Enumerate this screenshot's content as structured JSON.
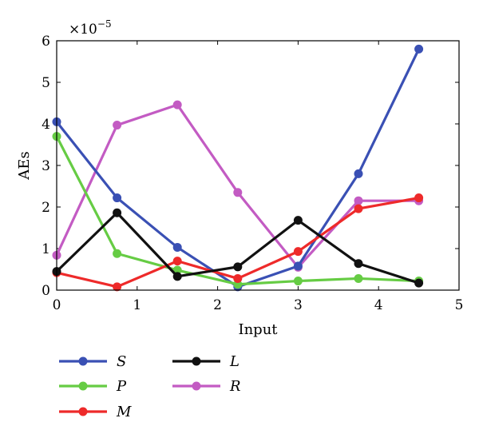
{
  "chart_data": {
    "type": "line",
    "xlabel": "Input",
    "ylabel": "AEs",
    "y_multiplier_base": "×10",
    "y_multiplier_exponent": "−5",
    "xlim": [
      0,
      5
    ],
    "ylim": [
      0,
      6
    ],
    "x_ticks": [
      "0",
      "1",
      "2",
      "3",
      "4",
      "5"
    ],
    "y_ticks": [
      "0",
      "1",
      "2",
      "3",
      "4",
      "5",
      "6"
    ],
    "grid": false,
    "x": [
      0,
      0.75,
      1.5,
      2.25,
      3,
      3.75,
      4.5
    ],
    "series": [
      {
        "name": "S",
        "color": "#3a50b4",
        "values": [
          4.05,
          2.22,
          1.03,
          0.08,
          0.58,
          2.8,
          5.8
        ]
      },
      {
        "name": "P",
        "color": "#66cc44",
        "values": [
          3.7,
          0.88,
          0.48,
          0.14,
          0.22,
          0.28,
          0.22
        ]
      },
      {
        "name": "M",
        "color": "#ee2a2a",
        "values": [
          0.42,
          0.08,
          0.7,
          0.28,
          0.93,
          1.96,
          2.22
        ]
      },
      {
        "name": "L",
        "color": "#111111",
        "values": [
          0.45,
          1.86,
          0.33,
          0.56,
          1.68,
          0.64,
          0.17
        ]
      },
      {
        "name": "R",
        "color": "#c35bc3",
        "values": [
          0.84,
          3.97,
          4.46,
          2.35,
          0.55,
          2.15,
          2.15
        ]
      }
    ],
    "legend_placement": "bottom-left, two columns"
  }
}
